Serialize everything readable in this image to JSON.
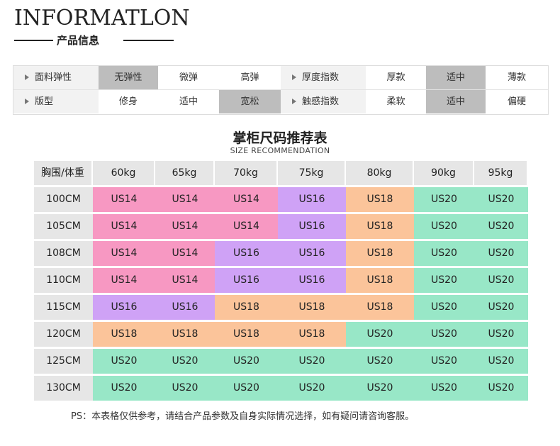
{
  "brand": {
    "title": "INFORMATLON",
    "subtitle": "产品信息"
  },
  "info": {
    "rows": [
      [
        {
          "text": "面料弹性",
          "kind": "label"
        },
        {
          "text": "无弹性",
          "kind": "option",
          "selected": true
        },
        {
          "text": "微弹",
          "kind": "option",
          "selected": false
        },
        {
          "text": "高弹",
          "kind": "option",
          "selected": false
        },
        {
          "text": "厚度指数",
          "kind": "label"
        },
        {
          "text": "厚款",
          "kind": "option",
          "selected": false
        },
        {
          "text": "适中",
          "kind": "option",
          "selected": true
        },
        {
          "text": "薄款",
          "kind": "option",
          "selected": false
        }
      ],
      [
        {
          "text": "版型",
          "kind": "label"
        },
        {
          "text": "修身",
          "kind": "option",
          "selected": false
        },
        {
          "text": "适中",
          "kind": "option",
          "selected": false
        },
        {
          "text": "宽松",
          "kind": "option",
          "selected": true
        },
        {
          "text": "触感指数",
          "kind": "label"
        },
        {
          "text": "柔软",
          "kind": "option",
          "selected": false
        },
        {
          "text": "适中",
          "kind": "option",
          "selected": true
        },
        {
          "text": "偏硬",
          "kind": "option",
          "selected": false
        }
      ]
    ]
  },
  "size_table": {
    "title": "掌柜尺码推荐表",
    "subtitle": "SIZE RECOMMENDATION",
    "corner": "胸围/体重",
    "weights": [
      "60kg",
      "65kg",
      "70kg",
      "75kg",
      "80kg",
      "90kg",
      "95kg"
    ],
    "rows": [
      {
        "bust": "100CM",
        "sizes": [
          "US14",
          "US14",
          "US14",
          "US16",
          "US18",
          "US20",
          "US20"
        ]
      },
      {
        "bust": "105CM",
        "sizes": [
          "US14",
          "US14",
          "US14",
          "US16",
          "US18",
          "US20",
          "US20"
        ]
      },
      {
        "bust": "108CM",
        "sizes": [
          "US14",
          "US14",
          "US16",
          "US16",
          "US18",
          "US20",
          "US20"
        ]
      },
      {
        "bust": "110CM",
        "sizes": [
          "US14",
          "US14",
          "US16",
          "US16",
          "US18",
          "US20",
          "US20"
        ]
      },
      {
        "bust": "115CM",
        "sizes": [
          "US16",
          "US16",
          "US18",
          "US18",
          "US18",
          "US20",
          "US20"
        ]
      },
      {
        "bust": "120CM",
        "sizes": [
          "US18",
          "US18",
          "US18",
          "US18",
          "US20",
          "US20",
          "US20"
        ]
      },
      {
        "bust": "125CM",
        "sizes": [
          "US20",
          "US20",
          "US20",
          "US20",
          "US20",
          "US20",
          "US20"
        ]
      },
      {
        "bust": "130CM",
        "sizes": [
          "US20",
          "US20",
          "US20",
          "US20",
          "US20",
          "US20",
          "US20"
        ]
      }
    ],
    "colors": {
      "US14": "#f798c2",
      "US16": "#cfa2f6",
      "US18": "#fbc49a",
      "US20": "#98e7c7"
    }
  },
  "note": "PS：本表格仅供参考，请结合产品参数及自身实际情况选择，如有疑问请咨询客服。"
}
